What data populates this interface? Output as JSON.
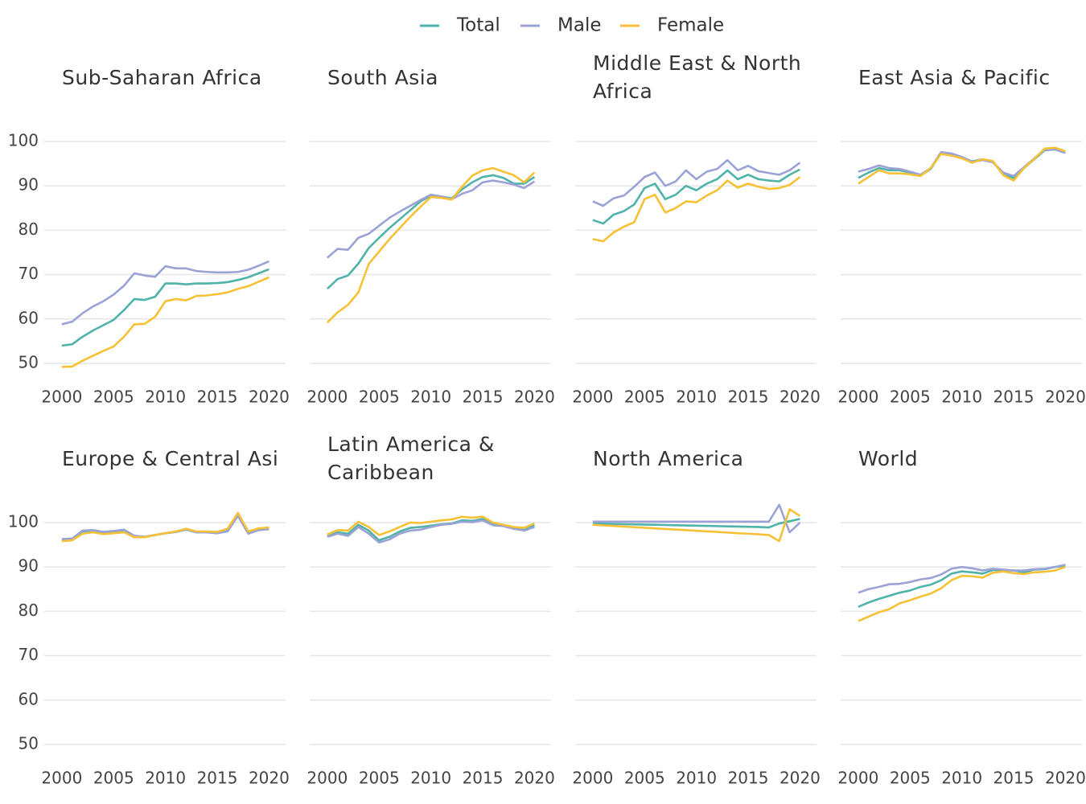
{
  "chart_data": [
    {
      "type": "line",
      "title": "Sub-Saharan Africa",
      "x": [
        2000,
        2001,
        2002,
        2003,
        2004,
        2005,
        2006,
        2007,
        2008,
        2009,
        2010,
        2011,
        2012,
        2013,
        2014,
        2015,
        2016,
        2017,
        2018,
        2019,
        2020
      ],
      "series": [
        {
          "name": "Total",
          "color": "#4fb3a9",
          "values": [
            54.0,
            54.3,
            56,
            57.4,
            58.6,
            59.8,
            62,
            64.5,
            64.3,
            65,
            68,
            68,
            67.8,
            68,
            68,
            68.1,
            68.3,
            68.8,
            69.4,
            70.3,
            71.2
          ]
        },
        {
          "name": "Male",
          "color": "#9ba3d6",
          "values": [
            58.8,
            59.4,
            61.3,
            62.8,
            64,
            65.5,
            67.5,
            70.3,
            69.8,
            69.5,
            71.9,
            71.4,
            71.4,
            70.8,
            70.6,
            70.5,
            70.5,
            70.6,
            71.1,
            72,
            73
          ]
        },
        {
          "name": "Female",
          "color": "#f6c136",
          "values": [
            49.2,
            49.3,
            50.6,
            51.7,
            52.8,
            53.8,
            56,
            58.8,
            58.9,
            60.5,
            64,
            64.5,
            64.2,
            65.2,
            65.3,
            65.6,
            66,
            66.8,
            67.4,
            68.4,
            69.4
          ]
        }
      ],
      "xlim": [
        1998.3,
        2021.6
      ],
      "ylim": [
        48,
        103
      ],
      "xticks": [
        2000,
        2005,
        2010,
        2015,
        2020
      ],
      "yticks": [
        50,
        60,
        70,
        80,
        90,
        100
      ],
      "grid": true
    },
    {
      "type": "line",
      "title": "South Asia",
      "x": [
        2000,
        2001,
        2002,
        2003,
        2004,
        2005,
        2006,
        2007,
        2008,
        2009,
        2010,
        2011,
        2012,
        2013,
        2014,
        2015,
        2016,
        2017,
        2018,
        2019,
        2020
      ],
      "series": [
        {
          "name": "Total",
          "color": "#4fb3a9",
          "values": [
            66.8,
            69,
            69.8,
            72.5,
            76,
            78.3,
            80.5,
            82.5,
            84.5,
            86.5,
            87.8,
            87.6,
            87.2,
            89.2,
            90.8,
            92,
            92.4,
            91.8,
            90.5,
            90.5,
            92
          ]
        },
        {
          "name": "Male",
          "color": "#9ba3d6",
          "values": [
            73.8,
            75.8,
            75.6,
            78.3,
            79.2,
            81,
            82.8,
            84.2,
            85.5,
            86.8,
            88,
            87.6,
            87,
            88.2,
            89,
            90.8,
            91.2,
            90.8,
            90.3,
            89.5,
            91
          ]
        },
        {
          "name": "Female",
          "color": "#f6c136",
          "values": [
            59.2,
            61.5,
            63.2,
            66,
            72.4,
            75.2,
            78,
            80.5,
            83,
            85.3,
            87.5,
            87.3,
            86.9,
            89.8,
            92.3,
            93.5,
            94,
            93.2,
            92.4,
            90.8,
            93
          ]
        }
      ],
      "xlim": [
        1998.3,
        2021.6
      ],
      "ylim": [
        48,
        103
      ],
      "xticks": [
        2000,
        2005,
        2010,
        2015,
        2020
      ],
      "yticks": [
        50,
        60,
        70,
        80,
        90,
        100
      ],
      "grid": true
    },
    {
      "type": "line",
      "title": "Middle East & North Africa",
      "x": [
        2000,
        2001,
        2002,
        2003,
        2004,
        2005,
        2006,
        2007,
        2008,
        2009,
        2010,
        2011,
        2012,
        2013,
        2014,
        2015,
        2016,
        2017,
        2018,
        2019,
        2020
      ],
      "series": [
        {
          "name": "Total",
          "color": "#4fb3a9",
          "values": [
            82.3,
            81.5,
            83.5,
            84.3,
            85.8,
            89.5,
            90.5,
            87,
            88,
            90,
            89,
            90.5,
            91.5,
            93.5,
            91.5,
            92.5,
            91.5,
            91.2,
            91,
            92.5,
            93.7
          ]
        },
        {
          "name": "Male",
          "color": "#9ba3d6",
          "values": [
            86.5,
            85.5,
            87.2,
            87.8,
            89.8,
            92,
            93,
            90,
            91,
            93.5,
            91.5,
            93.2,
            93.8,
            95.8,
            93.5,
            94.5,
            93.3,
            92.9,
            92.5,
            93.5,
            95.2
          ]
        },
        {
          "name": "Female",
          "color": "#f6c136",
          "values": [
            78,
            77.5,
            79.5,
            80.8,
            81.8,
            87,
            88,
            84,
            85,
            86.5,
            86.3,
            87.8,
            89,
            91.2,
            89.6,
            90.5,
            89.8,
            89.3,
            89.5,
            90.2,
            92
          ]
        }
      ],
      "xlim": [
        1998.3,
        2021.6
      ],
      "ylim": [
        48,
        103
      ],
      "xticks": [
        2000,
        2005,
        2010,
        2015,
        2020
      ],
      "yticks": [
        50,
        60,
        70,
        80,
        90,
        100
      ],
      "grid": true
    },
    {
      "type": "line",
      "title": "East Asia & Pacific",
      "x": [
        2000,
        2001,
        2002,
        2003,
        2004,
        2005,
        2006,
        2007,
        2008,
        2009,
        2010,
        2011,
        2012,
        2013,
        2014,
        2015,
        2016,
        2017,
        2018,
        2019,
        2020
      ],
      "series": [
        {
          "name": "Total",
          "color": "#4fb3a9",
          "values": [
            91.8,
            93,
            94,
            93.5,
            93.5,
            93,
            92.3,
            93.8,
            97.5,
            97.2,
            96.5,
            95.5,
            96,
            95.5,
            92.5,
            91.8,
            94,
            96,
            98,
            98.2,
            97.5
          ]
        },
        {
          "name": "Male",
          "color": "#9ba3d6",
          "values": [
            93.2,
            93.8,
            94.6,
            94,
            93.8,
            93.2,
            92.5,
            94,
            97.6,
            97.3,
            96.5,
            95.4,
            95.8,
            95.3,
            93,
            92.2,
            94.2,
            96.2,
            98.1,
            98.2,
            97.4
          ]
        },
        {
          "name": "Female",
          "color": "#f6c136",
          "values": [
            90.5,
            92,
            93.5,
            92.8,
            92.8,
            92.6,
            92.2,
            94,
            97.2,
            96.8,
            96.2,
            95.2,
            96,
            95.6,
            92.4,
            91.2,
            94,
            96.1,
            98.4,
            98.6,
            97.8
          ]
        }
      ],
      "xlim": [
        1998.3,
        2021.6
      ],
      "ylim": [
        48,
        103
      ],
      "xticks": [
        2000,
        2005,
        2010,
        2015,
        2020
      ],
      "yticks": [
        50,
        60,
        70,
        80,
        90,
        100
      ],
      "grid": true
    },
    {
      "type": "line",
      "title": "Europe & Central Asi",
      "x": [
        2000,
        2001,
        2002,
        2003,
        2004,
        2005,
        2006,
        2007,
        2008,
        2009,
        2010,
        2011,
        2012,
        2013,
        2014,
        2015,
        2016,
        2017,
        2018,
        2019,
        2020
      ],
      "series": [
        {
          "name": "Total",
          "color": "#4fb3a9",
          "values": [
            96.2,
            96.3,
            98,
            98.2,
            97.8,
            98,
            98.3,
            97,
            96.8,
            97.2,
            97.6,
            97.9,
            98.4,
            97.8,
            97.8,
            97.6,
            98.2,
            101.8,
            97.6,
            98.4,
            98.6
          ]
        },
        {
          "name": "Male",
          "color": "#9ba3d6",
          "values": [
            96.3,
            96.4,
            98.2,
            98.3,
            97.9,
            98.1,
            98.4,
            97,
            96.8,
            97.2,
            97.6,
            97.9,
            98.4,
            97.8,
            97.8,
            97.6,
            98,
            101.5,
            97.5,
            98.3,
            98.5
          ]
        },
        {
          "name": "Female",
          "color": "#f6c136",
          "values": [
            95.8,
            96,
            97.5,
            97.8,
            97.4,
            97.6,
            97.8,
            96.7,
            96.7,
            97.2,
            97.6,
            98,
            98.6,
            98,
            98,
            97.9,
            98.6,
            102.2,
            98,
            98.7,
            98.9
          ]
        }
      ],
      "xlim": [
        1998.3,
        2021.6
      ],
      "ylim": [
        48,
        103
      ],
      "xticks": [
        2000,
        2005,
        2010,
        2015,
        2020
      ],
      "yticks": [
        50,
        60,
        70,
        80,
        90,
        100
      ],
      "grid": true
    },
    {
      "type": "line",
      "title": "Latin America & Caribbean",
      "x": [
        2000,
        2001,
        2002,
        2003,
        2004,
        2005,
        2006,
        2007,
        2008,
        2009,
        2010,
        2011,
        2012,
        2013,
        2014,
        2015,
        2016,
        2017,
        2018,
        2019,
        2020
      ],
      "series": [
        {
          "name": "Total",
          "color": "#4fb3a9",
          "values": [
            97,
            97.8,
            97.5,
            99.5,
            98.2,
            96,
            96.8,
            98,
            98.8,
            99,
            99.3,
            99.6,
            99.8,
            100.5,
            100.4,
            100.8,
            99.5,
            99.4,
            98.8,
            98.4,
            99.4
          ]
        },
        {
          "name": "Male",
          "color": "#9ba3d6",
          "values": [
            96.8,
            97.5,
            97,
            99,
            97.5,
            95.5,
            96.2,
            97.5,
            98.2,
            98.4,
            99,
            99.5,
            99.7,
            100.2,
            100.1,
            100.5,
            99.4,
            99.2,
            98.6,
            98.2,
            99
          ]
        },
        {
          "name": "Female",
          "color": "#f6c136",
          "values": [
            97.3,
            98.3,
            98.2,
            100.2,
            99,
            97.2,
            98,
            99,
            100,
            99.9,
            100.2,
            100.5,
            100.7,
            101.3,
            101.1,
            101.3,
            100,
            99.5,
            99,
            98.8,
            99.8
          ]
        }
      ],
      "xlim": [
        1998.3,
        2021.6
      ],
      "ylim": [
        48,
        103
      ],
      "xticks": [
        2000,
        2005,
        2010,
        2015,
        2020
      ],
      "yticks": [
        50,
        60,
        70,
        80,
        90,
        100
      ],
      "grid": true
    },
    {
      "type": "line",
      "title": "North America",
      "x": [
        2000,
        2001,
        2002,
        2003,
        2004,
        2005,
        2006,
        2007,
        2008,
        2009,
        2010,
        2011,
        2012,
        2013,
        2014,
        2015,
        2016,
        2017,
        2018,
        2019,
        2020
      ],
      "series": [
        {
          "name": "Total",
          "color": "#4fb3a9",
          "values": [
            99.8,
            99.75,
            99.7,
            99.65,
            99.6,
            99.55,
            99.5,
            99.45,
            99.4,
            99.35,
            99.3,
            99.25,
            99.2,
            99.15,
            99.1,
            99.05,
            99,
            98.9,
            99.8,
            100.3,
            100.8
          ]
        },
        {
          "name": "Male",
          "color": "#9ba3d6",
          "values": [
            100.2,
            100.2,
            100.2,
            100.2,
            100.2,
            100.2,
            100.2,
            100.2,
            100.2,
            100.2,
            100.2,
            100.2,
            100.2,
            100.2,
            100.2,
            100.2,
            100.2,
            100.2,
            104,
            97.8,
            100
          ]
        },
        {
          "name": "Female",
          "color": "#f6c136",
          "values": [
            99.5,
            99.36,
            99.23,
            99.1,
            98.96,
            98.83,
            98.7,
            98.56,
            98.42,
            98.3,
            98.15,
            98.02,
            97.9,
            97.75,
            97.6,
            97.5,
            97.35,
            97.2,
            95.8,
            103,
            101.5
          ]
        }
      ],
      "xlim": [
        1998.3,
        2021.6
      ],
      "ylim": [
        48,
        103
      ],
      "xticks": [
        2000,
        2005,
        2010,
        2015,
        2020
      ],
      "yticks": [
        50,
        60,
        70,
        80,
        90,
        100
      ],
      "grid": true
    },
    {
      "type": "line",
      "title": "World",
      "x": [
        2000,
        2001,
        2002,
        2003,
        2004,
        2005,
        2006,
        2007,
        2008,
        2009,
        2010,
        2011,
        2012,
        2013,
        2014,
        2015,
        2016,
        2017,
        2018,
        2019,
        2020
      ],
      "series": [
        {
          "name": "Total",
          "color": "#4fb3a9",
          "values": [
            81,
            82,
            82.8,
            83.5,
            84.2,
            84.7,
            85.5,
            86,
            87,
            88.5,
            89,
            88.8,
            88.5,
            89.3,
            89.3,
            89.2,
            88.8,
            89.4,
            89.5,
            90,
            90.3
          ]
        },
        {
          "name": "Male",
          "color": "#9ba3d6",
          "values": [
            84.2,
            85,
            85.5,
            86.1,
            86.2,
            86.6,
            87.2,
            87.5,
            88.3,
            89.6,
            90,
            89.7,
            89.2,
            89.6,
            89.4,
            89.2,
            89.2,
            89.5,
            89.6,
            90,
            90.5
          ]
        },
        {
          "name": "Female",
          "color": "#f6c136",
          "values": [
            77.8,
            78.8,
            79.8,
            80.5,
            81.8,
            82.5,
            83.3,
            84,
            85.2,
            87,
            88,
            87.9,
            87.6,
            88.7,
            89,
            88.6,
            88.4,
            88.8,
            88.9,
            89.2,
            90
          ]
        }
      ],
      "xlim": [
        1998.3,
        2021.6
      ],
      "ylim": [
        48,
        103
      ],
      "xticks": [
        2000,
        2005,
        2010,
        2015,
        2020
      ],
      "yticks": [
        50,
        60,
        70,
        80,
        90,
        100
      ],
      "grid": true
    }
  ]
}
